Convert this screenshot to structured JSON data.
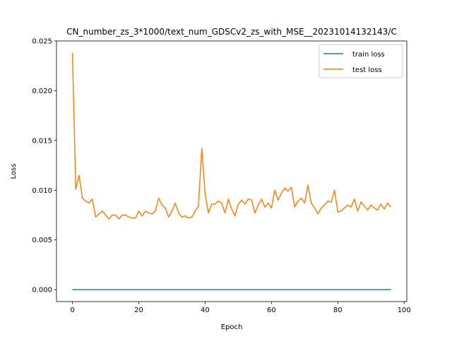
{
  "chart_data": {
    "type": "line",
    "title": "CN_number_zs_3*1000/text_num_GDSCv2_zs_with_MSE__20231014132143/C",
    "xlabel": "Epoch",
    "ylabel": "Loss",
    "xlim": [
      -4.8,
      100.8
    ],
    "ylim": [
      -0.0012,
      0.025
    ],
    "xticks": [
      0,
      20,
      40,
      60,
      80,
      100
    ],
    "yticks": [
      0.0,
      0.005,
      0.01,
      0.015,
      0.02,
      0.025
    ],
    "xtick_labels": [
      "0",
      "20",
      "40",
      "60",
      "80",
      "100"
    ],
    "ytick_labels": [
      "0.000",
      "0.005",
      "0.010",
      "0.015",
      "0.020",
      "0.025"
    ],
    "grid": false,
    "legend_position": "top-right",
    "series": [
      {
        "name": "train loss",
        "color": "#1f77b4",
        "x": [
          0,
          96
        ],
        "y": [
          0.0,
          0.0
        ]
      },
      {
        "name": "test loss",
        "color": "#ff7f0e",
        "x": [
          0,
          1,
          2,
          3,
          4,
          5,
          6,
          7,
          8,
          9,
          10,
          11,
          12,
          13,
          14,
          15,
          16,
          17,
          18,
          19,
          20,
          21,
          22,
          23,
          24,
          25,
          26,
          27,
          28,
          29,
          30,
          31,
          32,
          33,
          34,
          35,
          36,
          37,
          38,
          39,
          40,
          41,
          42,
          43,
          44,
          45,
          46,
          47,
          48,
          49,
          50,
          51,
          52,
          53,
          54,
          55,
          56,
          57,
          58,
          59,
          60,
          61,
          62,
          63,
          64,
          65,
          66,
          67,
          68,
          69,
          70,
          71,
          72,
          73,
          74,
          75,
          76,
          77,
          78,
          79,
          80,
          81,
          82,
          83,
          84,
          85,
          86,
          87,
          88,
          89,
          90,
          91,
          92,
          93,
          94,
          95,
          96
        ],
        "y": [
          0.0238,
          0.0101,
          0.0115,
          0.0092,
          0.0089,
          0.0087,
          0.0091,
          0.0073,
          0.0076,
          0.0079,
          0.0075,
          0.0071,
          0.0075,
          0.0075,
          0.0071,
          0.0075,
          0.0075,
          0.0073,
          0.0072,
          0.0072,
          0.0079,
          0.0074,
          0.0079,
          0.0077,
          0.0076,
          0.0079,
          0.0092,
          0.0085,
          0.0082,
          0.0073,
          0.0079,
          0.0087,
          0.0077,
          0.0073,
          0.0074,
          0.0072,
          0.0073,
          0.0079,
          0.0084,
          0.0142,
          0.0096,
          0.0077,
          0.0086,
          0.0086,
          0.0089,
          0.0087,
          0.0077,
          0.0091,
          0.0081,
          0.0074,
          0.0086,
          0.009,
          0.0086,
          0.0091,
          0.009,
          0.0077,
          0.0085,
          0.0091,
          0.0083,
          0.0087,
          0.0082,
          0.01,
          0.009,
          0.0097,
          0.0102,
          0.0099,
          0.0103,
          0.0083,
          0.0089,
          0.0092,
          0.0087,
          0.0105,
          0.0087,
          0.0082,
          0.0076,
          0.0082,
          0.0085,
          0.0089,
          0.0088,
          0.01,
          0.0078,
          0.0079,
          0.0082,
          0.0085,
          0.0083,
          0.0091,
          0.0079,
          0.0088,
          0.0084,
          0.008,
          0.0085,
          0.0082,
          0.008,
          0.0086,
          0.0081,
          0.0087,
          0.0083
        ]
      }
    ]
  }
}
